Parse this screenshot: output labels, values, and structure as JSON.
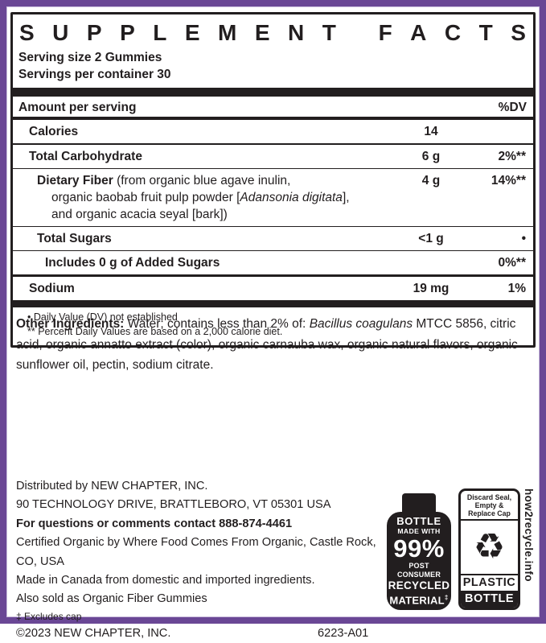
{
  "theme": {
    "border_color": "#6a4795",
    "ink_color": "#221e1f"
  },
  "panel": {
    "title": "SUPPLEMENT FACTS",
    "serving_size": "Serving size 2 Gummies",
    "servings_per_container": "Servings per container 30",
    "amount_header": "Amount per serving",
    "dv_header": "%DV",
    "rows": {
      "calories": {
        "name": "Calories",
        "amount": "14",
        "dv": ""
      },
      "total_carbohydrate": {
        "name": "Total Carbohydrate",
        "amount": "6 g",
        "dv": "2%**"
      },
      "dietary_fiber": {
        "name": "Dietary Fiber",
        "desc_line1": " (from organic blue agave inulin,",
        "desc_line2_pre": "organic baobab fruit pulp powder [",
        "desc_line2_italic": "Adansonia digitata",
        "desc_line2_post": "],",
        "desc_line3": "and organic acacia seyal [bark])",
        "amount": "4 g",
        "dv": "14%**"
      },
      "total_sugars": {
        "name": "Total Sugars",
        "amount": "<1 g",
        "dv": "•"
      },
      "added_sugars": {
        "name": "Includes 0 g of Added Sugars",
        "amount": "",
        "dv": "0%**"
      },
      "sodium": {
        "name": "Sodium",
        "amount": "19 mg",
        "dv": "1%"
      }
    },
    "footnotes": {
      "dv_not_established": "• Daily Value (DV) not established",
      "percent_dv": "** Percent Daily Values are based on a 2,000 calorie diet."
    }
  },
  "other_ingredients": {
    "label": "Other Ingredients:",
    "text_before_italic": " Water; contains less than 2% of: ",
    "italic_species": "Bacillus coagulans",
    "text_after_italic": " MTCC 5856, citric acid, organic annatto extract (color), organic carnauba wax, organic natural flavors, organic sunflower oil, pectin, sodium citrate."
  },
  "distribution": {
    "distributed_by": "Distributed by NEW CHAPTER, INC.",
    "address": "90 TECHNOLOGY DRIVE, BRATTLEBORO, VT 05301 USA",
    "contact": "For questions or comments contact 888-874-4461",
    "certified": "Certified Organic by Where Food Comes From Organic, Castle Rock, CO, USA",
    "made_in": "Made in Canada from domestic and imported ingredients.",
    "also_sold": "Also sold as Organic Fiber Gummies",
    "excludes_cap": "‡ Excludes cap",
    "copyright": "©2023 NEW CHAPTER, INC.",
    "product_code": "6223-A01"
  },
  "bottle_badge": {
    "line1": "BOTTLE",
    "line2": "MADE WITH",
    "percent": "99%",
    "line3": "POST CONSUMER",
    "line4": "RECYCLED",
    "line5": "MATERIAL",
    "dagger": "‡"
  },
  "recycle_label": {
    "header_line1": "Discard Seal,",
    "header_line2": "Empty &",
    "header_line3": "Replace Cap",
    "recycle_icon": "♻",
    "material": "PLASTIC",
    "container": "BOTTLE",
    "website": "how2recycle.info"
  }
}
